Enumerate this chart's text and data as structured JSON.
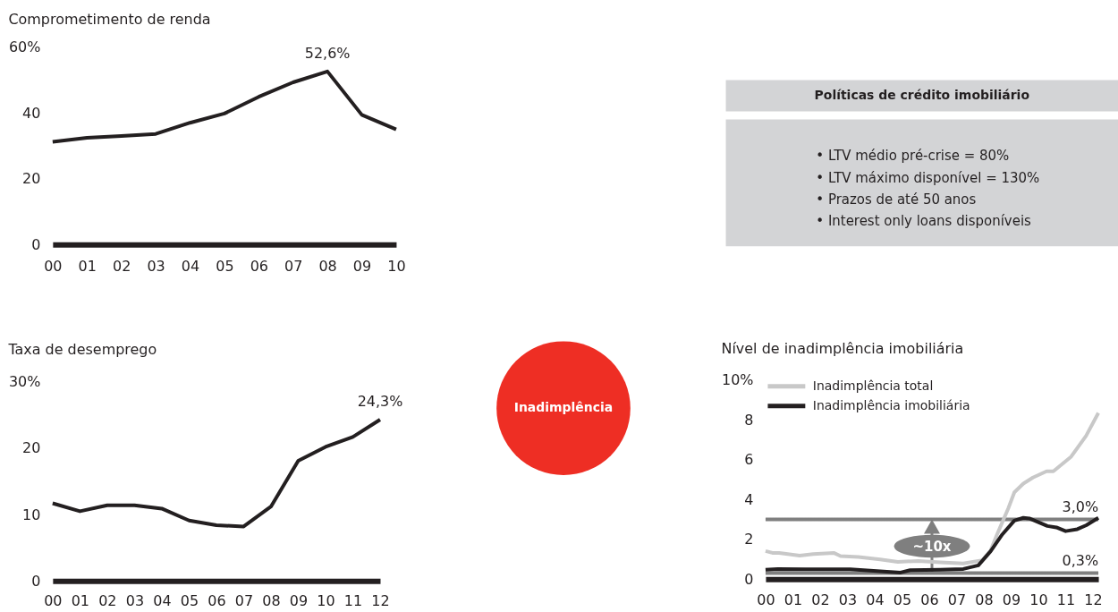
{
  "chart_data": [
    {
      "type": "line",
      "title": "Comprometimento de renda",
      "categories": [
        "00",
        "01",
        "02",
        "03",
        "04",
        "05",
        "06",
        "07",
        "08",
        "09",
        "10"
      ],
      "values": [
        31.2,
        32.4,
        33.0,
        33.6,
        37.0,
        39.8,
        44.9,
        49.3,
        52.6,
        39.4,
        35.0
      ],
      "color": "#231f20",
      "value_labels": [
        null,
        null,
        null,
        null,
        null,
        null,
        null,
        null,
        "52,6%",
        null,
        null
      ],
      "ylim": [
        0,
        60
      ],
      "yticks": [
        0,
        20,
        40,
        {
          "value": 60,
          "label": "60%"
        }
      ]
    },
    {
      "type": "other",
      "title": "Políticas de crédito imobiliário",
      "annotations": [
        "• LTV médio pré-crise = 80%",
        "• LTV máximo disponível = 130%",
        "• Prazos de até 50 anos",
        "• Interest only loans disponíveis"
      ]
    },
    {
      "type": "line",
      "title": "Taxa de desemprego",
      "categories": [
        "00",
        "01",
        "02",
        "03",
        "04",
        "05",
        "06",
        "07",
        "08",
        "09",
        "10",
        "11",
        "12"
      ],
      "values": [
        11.7,
        10.5,
        11.4,
        11.4,
        10.9,
        9.1,
        8.4,
        8.2,
        11.2,
        18.1,
        20.2,
        21.7,
        24.3
      ],
      "color": "#231f20",
      "value_labels": [
        null,
        null,
        null,
        null,
        null,
        null,
        null,
        null,
        null,
        null,
        null,
        null,
        "24,3%"
      ],
      "ylim": [
        0,
        30
      ],
      "yticks": [
        0,
        10,
        20,
        {
          "value": 30,
          "label": "30%"
        }
      ]
    },
    {
      "type": "other",
      "annotations": [
        "Inadimplência"
      ]
    },
    {
      "type": "line",
      "title": "Nível de inadimplência imobiliária",
      "series": [
        {
          "name": "Inadimplência total",
          "color": "#c8c8c8",
          "x": [
            2000.0,
            2000.25,
            2000.5,
            2001.0,
            2001.25,
            2001.75,
            2002.5,
            2002.75,
            2003.4,
            2004.2,
            2004.85,
            2005.6,
            2006.4,
            2007.25,
            2007.95,
            2008.25,
            2008.47,
            2008.68,
            2008.9,
            2009.12,
            2009.45,
            2009.8,
            2010.3,
            2010.55,
            2010.8,
            2011.2,
            2011.75,
            2012.2
          ],
          "values": [
            1.41,
            1.32,
            1.32,
            1.23,
            1.18,
            1.26,
            1.32,
            1.16,
            1.11,
            0.99,
            0.87,
            0.91,
            0.84,
            0.79,
            0.95,
            1.44,
            2.19,
            2.86,
            3.56,
            4.36,
            4.8,
            5.1,
            5.42,
            5.42,
            5.7,
            6.15,
            7.2,
            8.35
          ]
        },
        {
          "name": "Inadimplência imobiliária",
          "color": "#231f20",
          "x": [
            2000.0,
            2000.45,
            2001.45,
            2003.1,
            2004.2,
            2004.95,
            2005.3,
            2006.4,
            2007.25,
            2007.8,
            2008.25,
            2008.68,
            2009.12,
            2009.45,
            2009.67,
            2010.33,
            2010.66,
            2011.0,
            2011.43,
            2011.76,
            2012.2
          ],
          "values": [
            0.47,
            0.51,
            0.49,
            0.49,
            0.39,
            0.33,
            0.45,
            0.47,
            0.51,
            0.69,
            1.4,
            2.25,
            2.94,
            3.08,
            3.05,
            2.67,
            2.6,
            2.41,
            2.51,
            2.71,
            3.08
          ]
        }
      ],
      "xlim": [
        2000,
        2012.2
      ],
      "xticks": [
        {
          "value": 2000,
          "label": "00"
        },
        {
          "value": 2001,
          "label": "01"
        },
        {
          "value": 2002,
          "label": "02"
        },
        {
          "value": 2003,
          "label": "03"
        },
        {
          "value": 2004,
          "label": "04"
        },
        {
          "value": 2005,
          "label": "05"
        },
        {
          "value": 2006,
          "label": "06"
        },
        {
          "value": 2007,
          "label": "07"
        },
        {
          "value": 2008,
          "label": "08"
        },
        {
          "value": 2009,
          "label": "09"
        },
        {
          "value": 2010,
          "label": "10"
        },
        {
          "value": 2011,
          "label": "11"
        },
        {
          "value": 2012,
          "label": "12"
        }
      ],
      "ylim": [
        0,
        10
      ],
      "yticks": [
        0,
        2,
        4,
        6,
        8,
        {
          "value": 10,
          "label": "10%"
        }
      ],
      "legend": "top left",
      "ref_lines": [
        {
          "axis": "y",
          "value": 3.0,
          "label": "3,0%",
          "color": "#7f7f7f"
        },
        {
          "axis": "y",
          "value": 0.3,
          "label": "0,3%",
          "color": "#7f7f7f"
        }
      ],
      "annotations": [
        "~10x"
      ]
    }
  ]
}
